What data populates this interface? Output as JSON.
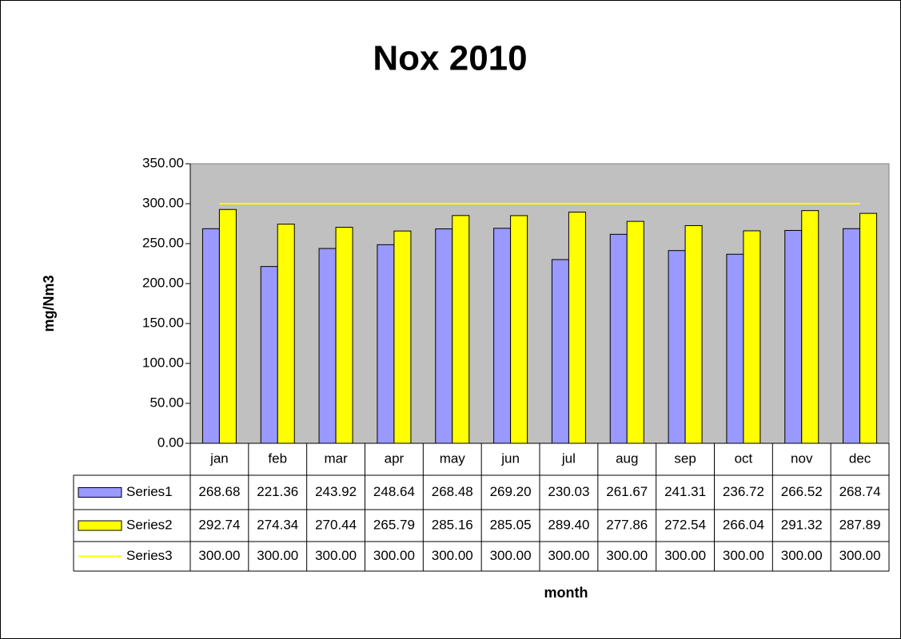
{
  "chart_data": {
    "type": "bar",
    "title": "Nox  2010",
    "y_label": "mg/Nm3",
    "x_label": "month",
    "categories": [
      "jan",
      "feb",
      "mar",
      "apr",
      "may",
      "jun",
      "jul",
      "aug",
      "sep",
      "oct",
      "nov",
      "dec"
    ],
    "series": [
      {
        "name": "Series1",
        "type": "bar",
        "color": "#9999ff",
        "values": [
          268.68,
          221.36,
          243.92,
          248.64,
          268.48,
          269.2,
          230.03,
          261.67,
          241.31,
          236.72,
          266.52,
          268.74
        ],
        "value_labels": [
          "268.68",
          "221.36",
          "243.92",
          "248.64",
          "268.48",
          "269.20",
          "230.03",
          "261.67",
          "241.31",
          "236.72",
          "266.52",
          "268.74"
        ]
      },
      {
        "name": "Series2",
        "type": "bar",
        "color": "#ffff00",
        "values": [
          292.74,
          274.34,
          270.44,
          265.79,
          285.16,
          285.05,
          289.4,
          277.86,
          272.54,
          266.04,
          291.32,
          287.89
        ],
        "value_labels": [
          "292.74",
          "274.34",
          "270.44",
          "265.79",
          "285.16",
          "285.05",
          "289.40",
          "277.86",
          "272.54",
          "266.04",
          "291.32",
          "287.89"
        ]
      },
      {
        "name": "Series3",
        "type": "line",
        "color": "#ffff00",
        "values": [
          300,
          300,
          300,
          300,
          300,
          300,
          300,
          300,
          300,
          300,
          300,
          300
        ],
        "value_labels": [
          "300.00",
          "300.00",
          "300.00",
          "300.00",
          "300.00",
          "300.00",
          "300.00",
          "300.00",
          "300.00",
          "300.00",
          "300.00",
          "300.00"
        ]
      }
    ],
    "ylim": [
      0,
      350
    ],
    "yticks": [
      {
        "value": 0,
        "label": "0.00"
      },
      {
        "value": 50,
        "label": "50.00"
      },
      {
        "value": 100,
        "label": "100.00"
      },
      {
        "value": 150,
        "label": "150.00"
      },
      {
        "value": 200,
        "label": "200.00"
      },
      {
        "value": 250,
        "label": "250.00"
      },
      {
        "value": 300,
        "label": "300.00"
      },
      {
        "value": 350,
        "label": "350.00"
      }
    ],
    "grid": false,
    "plot_background": "#c0c0c0",
    "data_table": true
  }
}
